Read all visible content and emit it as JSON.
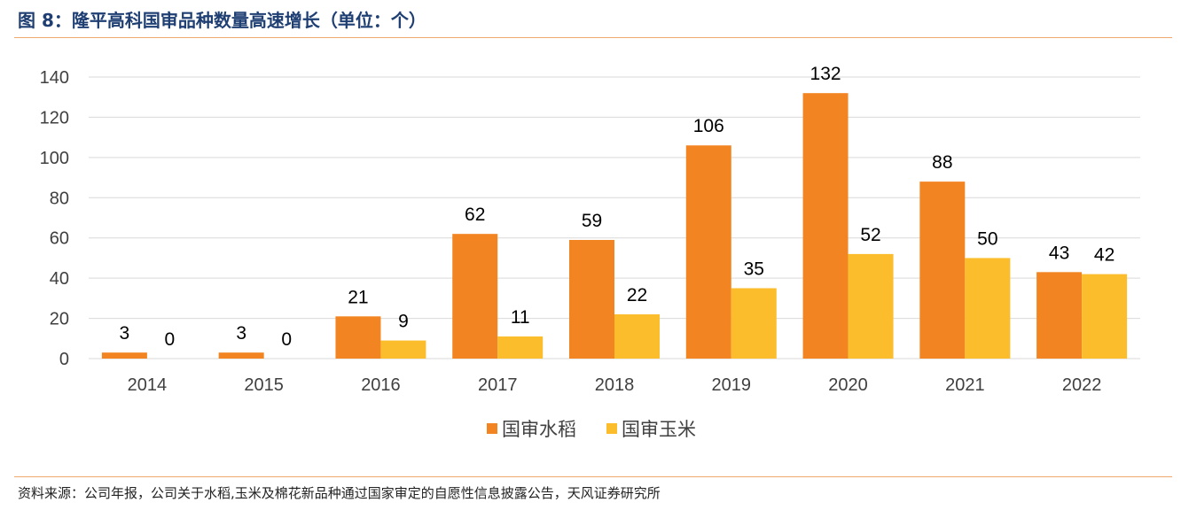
{
  "header": {
    "title": "图 8：隆平高科国审品种数量高速增长（单位：个）"
  },
  "footer": {
    "source": "资料来源：公司年报，公司关于水稻,玉米及棉花新品种通过国家审定的自愿性信息披露公告，天风证券研究所"
  },
  "colors": {
    "series_rice": "#f28522",
    "series_corn": "#fbbd2c",
    "grid": "#d9d9d9",
    "axis_text": "#404040",
    "label_text": "#000000"
  },
  "chart_data": {
    "type": "bar",
    "title": "",
    "xlabel": "",
    "ylabel": "",
    "categories": [
      "2014",
      "2015",
      "2016",
      "2017",
      "2018",
      "2019",
      "2020",
      "2021",
      "2022"
    ],
    "series": [
      {
        "name": "国审水稻",
        "values": [
          3,
          3,
          21,
          62,
          59,
          106,
          132,
          88,
          43
        ]
      },
      {
        "name": "国审玉米",
        "values": [
          0,
          0,
          9,
          11,
          22,
          35,
          52,
          50,
          42
        ]
      }
    ],
    "ylim": [
      0,
      140
    ],
    "yticks": [
      0,
      20,
      40,
      60,
      80,
      100,
      120,
      140
    ],
    "grid": true,
    "data_labels": true,
    "legend_position": "bottom-center"
  }
}
